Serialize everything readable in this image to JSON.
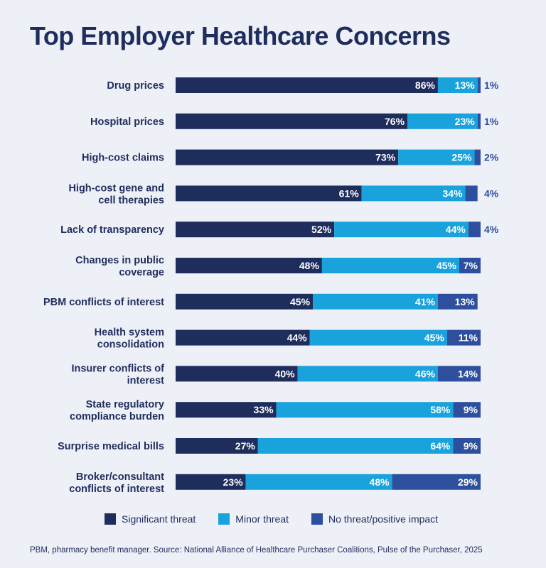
{
  "title": "Top Employer Healthcare Concerns",
  "footnote": "PBM, pharmacy benefit manager. Source: National Alliance of Healthcare Purchaser Coalitions, Pulse of the Purchaser, 2025",
  "colors": {
    "significant": "#1f2d5c",
    "minor": "#1aa2dc",
    "none": "#2e4f9e",
    "label_text": "#1f2d5c",
    "bar_text": "#ffffff",
    "background": "#eef0f7"
  },
  "chart_data": {
    "type": "bar",
    "orientation": "horizontal",
    "stacked": true,
    "title": "Top Employer Healthcare Concerns",
    "xlabel": "",
    "ylabel": "",
    "xlim": [
      0,
      100
    ],
    "legend_position": "bottom",
    "categories": [
      "Drug prices",
      "Hospital prices",
      "High-cost claims",
      "High-cost gene and cell therapies",
      "Lack of transparency",
      "Changes in public coverage",
      "PBM conflicts of interest",
      "Health system consolidation",
      "Insurer conflicts of interest",
      "State regulatory compliance burden",
      "Surprise medical bills",
      "Broker/consultant conflicts of interest"
    ],
    "category_lines": [
      [
        "Drug prices"
      ],
      [
        "Hospital prices"
      ],
      [
        "High-cost claims"
      ],
      [
        "High-cost gene and",
        "cell therapies"
      ],
      [
        "Lack of transparency"
      ],
      [
        "Changes in public",
        "coverage"
      ],
      [
        "PBM conflicts of interest"
      ],
      [
        "Health system",
        "consolidation"
      ],
      [
        "Insurer conflicts of",
        "interest"
      ],
      [
        "State regulatory",
        "compliance burden"
      ],
      [
        "Surprise medical bills"
      ],
      [
        "Broker/consultant",
        "conflicts of interest"
      ]
    ],
    "series": [
      {
        "name": "Significant threat",
        "color": "#1f2d5c",
        "values": [
          86,
          76,
          73,
          61,
          52,
          48,
          45,
          44,
          40,
          33,
          27,
          23
        ]
      },
      {
        "name": "Minor threat",
        "color": "#1aa2dc",
        "values": [
          13,
          23,
          25,
          34,
          44,
          45,
          41,
          45,
          46,
          58,
          64,
          48
        ]
      },
      {
        "name": "No threat/positive impact",
        "color": "#2e4f9e",
        "values": [
          1,
          1,
          2,
          4,
          4,
          7,
          13,
          11,
          14,
          9,
          9,
          29
        ]
      }
    ]
  }
}
